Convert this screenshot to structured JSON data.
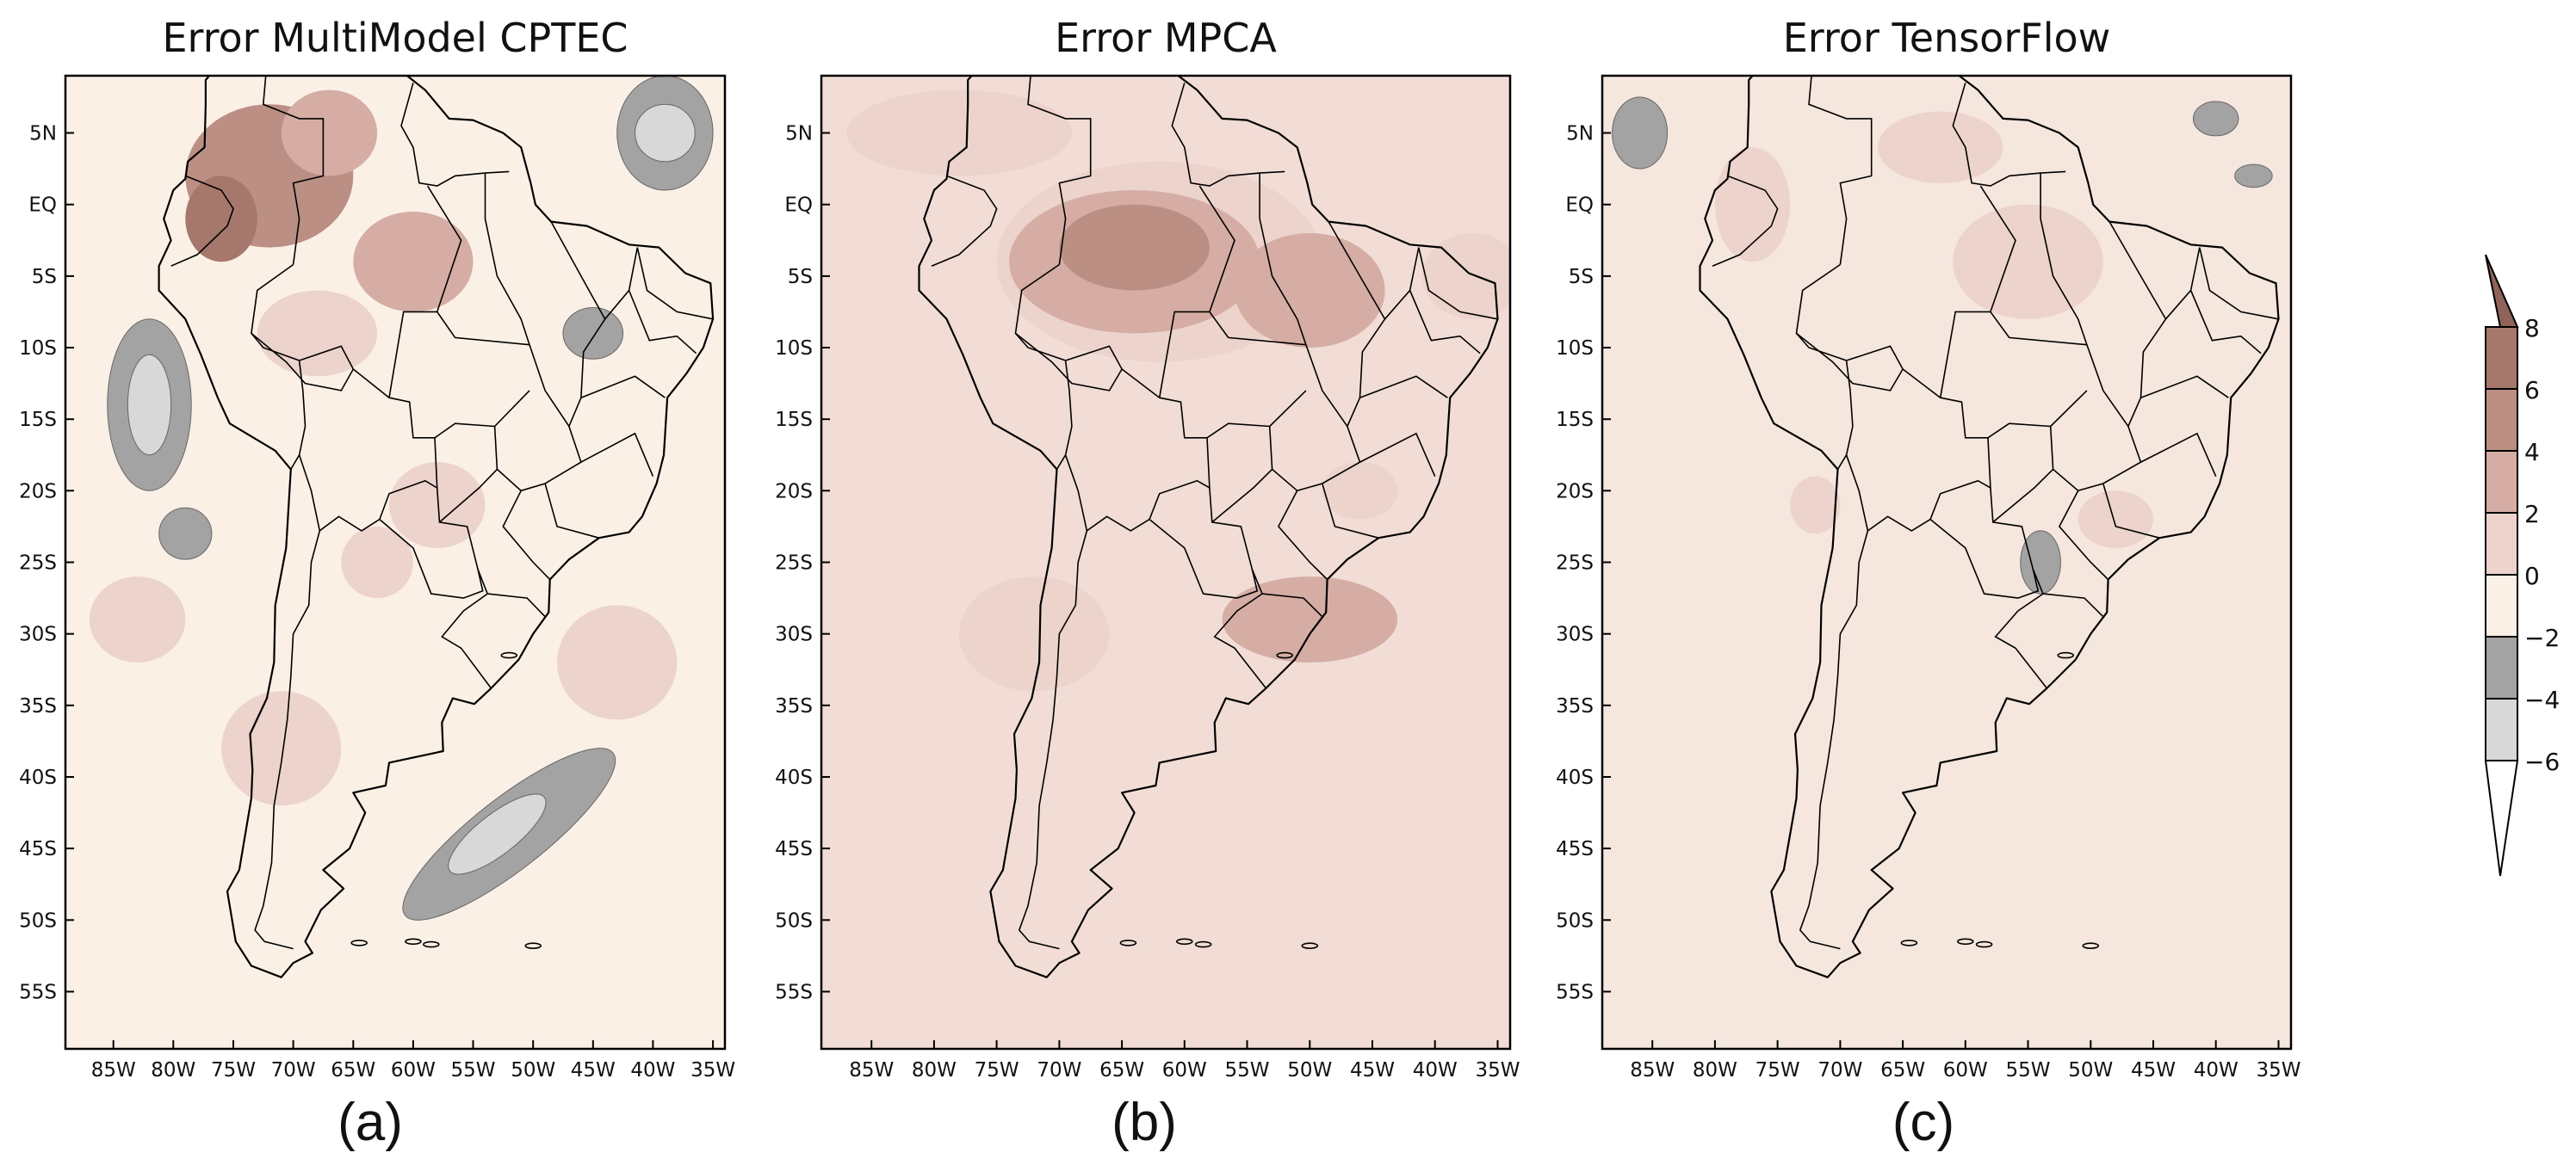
{
  "panels": [
    {
      "title": "Error MultiModel CPTEC",
      "caption": "(a)",
      "blobs": [
        {
          "lon": -72,
          "lat": 2,
          "rx": 7,
          "ry": 5,
          "level": 3
        },
        {
          "lon": -76,
          "lat": -1,
          "rx": 3,
          "ry": 3,
          "level": 4
        },
        {
          "lon": -67,
          "lat": 5,
          "rx": 4,
          "ry": 3,
          "level": 2
        },
        {
          "lon": -60,
          "lat": -4,
          "rx": 5,
          "ry": 3.5,
          "level": 2
        },
        {
          "lon": -68,
          "lat": -9,
          "rx": 5,
          "ry": 3,
          "level": 1
        },
        {
          "lon": -58,
          "lat": -21,
          "rx": 4,
          "ry": 3,
          "level": 1
        },
        {
          "lon": -63,
          "lat": -25,
          "rx": 3,
          "ry": 2.5,
          "level": 1
        },
        {
          "lon": -83,
          "lat": -29,
          "rx": 4,
          "ry": 3,
          "level": 1
        },
        {
          "lon": -82,
          "lat": -14,
          "rx": 3.5,
          "ry": 6,
          "level": -1
        },
        {
          "lon": -82,
          "lat": -14,
          "rx": 1.8,
          "ry": 3.5,
          "level": -2
        },
        {
          "lon": -39,
          "lat": 5,
          "rx": 4,
          "ry": 4,
          "level": -1
        },
        {
          "lon": -39,
          "lat": 5,
          "rx": 2.5,
          "ry": 2,
          "level": -2
        },
        {
          "lon": -52,
          "lat": -44,
          "rx": 11,
          "ry": 2.5,
          "rot": -38,
          "level": -1
        },
        {
          "lon": -53,
          "lat": -44,
          "rx": 5,
          "ry": 1.4,
          "rot": -38,
          "level": -2
        },
        {
          "lon": -79,
          "lat": -23,
          "rx": 2.2,
          "ry": 1.8,
          "level": -1
        },
        {
          "lon": -45,
          "lat": -9,
          "rx": 2.5,
          "ry": 1.8,
          "level": -1
        },
        {
          "lon": -71,
          "lat": -38,
          "rx": 5,
          "ry": 4,
          "level": 1
        },
        {
          "lon": -43,
          "lat": -32,
          "rx": 5,
          "ry": 4,
          "level": 1
        }
      ]
    },
    {
      "title": "Error MPCA",
      "caption": "(b)",
      "blobs": [
        {
          "lon": -62,
          "lat": -4,
          "rx": 13,
          "ry": 7,
          "level": 1
        },
        {
          "lon": -64,
          "lat": -4,
          "rx": 10,
          "ry": 5,
          "level": 2
        },
        {
          "lon": -64,
          "lat": -3,
          "rx": 6,
          "ry": 3,
          "level": 3
        },
        {
          "lon": -50,
          "lat": -6,
          "rx": 6,
          "ry": 4,
          "level": 2
        },
        {
          "lon": -78,
          "lat": 5,
          "rx": 9,
          "ry": 3,
          "level": 1
        },
        {
          "lon": -50,
          "lat": -29,
          "rx": 7,
          "ry": 3,
          "level": 2
        },
        {
          "lon": -46,
          "lat": -20,
          "rx": 3,
          "ry": 2,
          "level": 1
        },
        {
          "lon": -37,
          "lat": -5,
          "rx": 4,
          "ry": 3,
          "level": 1
        },
        {
          "lon": -72,
          "lat": -30,
          "rx": 6,
          "ry": 4,
          "level": 1
        }
      ]
    },
    {
      "title": "Error TensorFlow",
      "caption": "(c)",
      "blobs": [
        {
          "lon": -54,
          "lat": -25,
          "rx": 1.6,
          "ry": 2.2,
          "level": -1
        },
        {
          "lon": -86,
          "lat": 5,
          "rx": 2.2,
          "ry": 2.5,
          "level": -1
        },
        {
          "lon": -40,
          "lat": 6,
          "rx": 1.8,
          "ry": 1.2,
          "level": -1
        },
        {
          "lon": -37,
          "lat": 2,
          "rx": 1.5,
          "ry": 0.8,
          "level": -1
        },
        {
          "lon": -77,
          "lat": 0,
          "rx": 3,
          "ry": 4,
          "level": 1
        },
        {
          "lon": -72,
          "lat": -21,
          "rx": 2,
          "ry": 2,
          "level": 1
        },
        {
          "lon": -55,
          "lat": -4,
          "rx": 6,
          "ry": 4,
          "level": 1
        },
        {
          "lon": -62,
          "lat": 4,
          "rx": 5,
          "ry": 2.5,
          "level": 1
        },
        {
          "lon": -48,
          "lat": -22,
          "rx": 3,
          "ry": 2,
          "level": 1
        }
      ]
    }
  ],
  "axes": {
    "lat_ticks": [
      {
        "value": 5,
        "label": "5N"
      },
      {
        "value": 0,
        "label": "EQ"
      },
      {
        "value": -5,
        "label": "5S"
      },
      {
        "value": -10,
        "label": "10S"
      },
      {
        "value": -15,
        "label": "15S"
      },
      {
        "value": -20,
        "label": "20S"
      },
      {
        "value": -25,
        "label": "25S"
      },
      {
        "value": -30,
        "label": "30S"
      },
      {
        "value": -35,
        "label": "35S"
      },
      {
        "value": -40,
        "label": "40S"
      },
      {
        "value": -45,
        "label": "45S"
      },
      {
        "value": -50,
        "label": "50S"
      },
      {
        "value": -55,
        "label": "55S"
      }
    ],
    "lon_ticks": [
      {
        "value": -85,
        "label": "85W"
      },
      {
        "value": -80,
        "label": "80W"
      },
      {
        "value": -75,
        "label": "75W"
      },
      {
        "value": -70,
        "label": "70W"
      },
      {
        "value": -65,
        "label": "65W"
      },
      {
        "value": -60,
        "label": "60W"
      },
      {
        "value": -55,
        "label": "55W"
      },
      {
        "value": -50,
        "label": "50W"
      },
      {
        "value": -45,
        "label": "45W"
      },
      {
        "value": -40,
        "label": "40W"
      },
      {
        "value": -35,
        "label": "35W"
      }
    ],
    "lon_range": [
      -89,
      -34
    ],
    "lat_range": [
      -59,
      9
    ]
  },
  "colorbar": {
    "labels": [
      "8",
      "6",
      "4",
      "2",
      "0",
      "−2",
      "−4",
      "−6"
    ],
    "colors": {
      "above_8": "#8f6358",
      "6_8": "#a6786c",
      "4_6": "#bb8f84",
      "2_4": "#d5ada4",
      "0_2": "#ecd3cc",
      "m2_0": "#fbf0e6",
      "m4_m2": "#a3a3a3",
      "m6_m4": "#d8d8d8",
      "below_m6": "#ffffff"
    }
  }
}
